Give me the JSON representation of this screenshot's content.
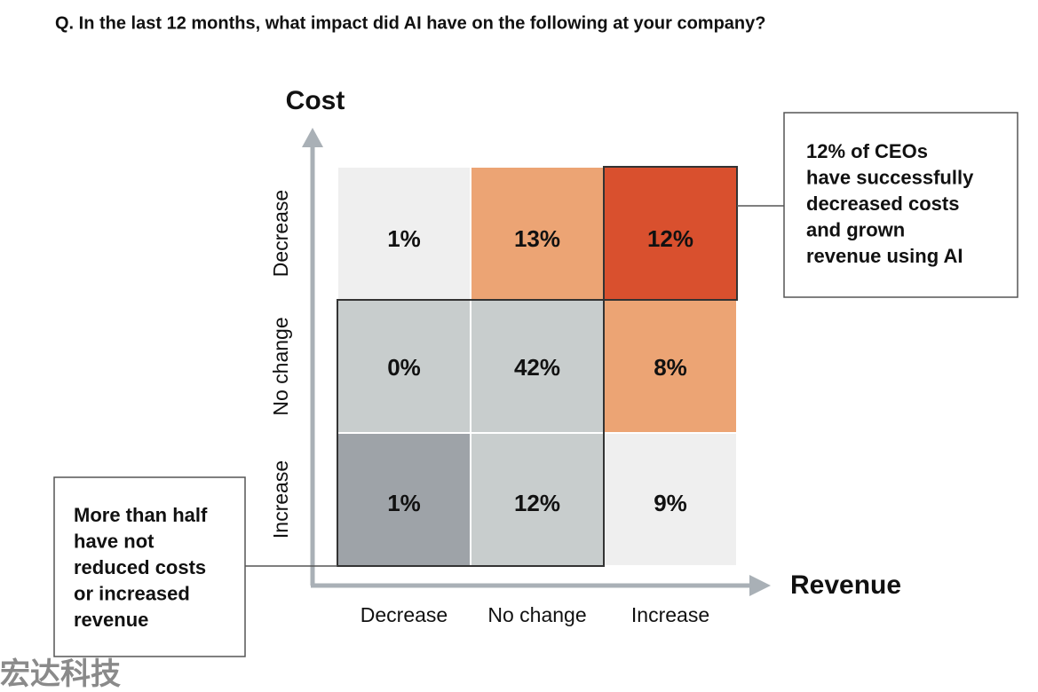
{
  "chart_data": {
    "type": "heatmap",
    "title": "Q. In the last 12 months, what impact did AI have on the following at your company?",
    "x_label": "Revenue",
    "y_label": "Cost",
    "x_categories": [
      "Decrease",
      "No change",
      "Increase"
    ],
    "y_categories": [
      "Decrease",
      "No change",
      "Increase"
    ],
    "values": [
      [
        1,
        13,
        12
      ],
      [
        0,
        42,
        8
      ],
      [
        1,
        12,
        9
      ]
    ],
    "value_labels": [
      [
        "1%",
        "13%",
        "12%"
      ],
      [
        "0%",
        "42%",
        "8%"
      ],
      [
        "1%",
        "12%",
        "9%"
      ]
    ],
    "colors": [
      [
        "#efefef",
        "#eca474",
        "#d9502e"
      ],
      [
        "#c8cdcd",
        "#c8cdcd",
        "#eca474"
      ],
      [
        "#9ea3a8",
        "#c8cdcd",
        "#efefef"
      ]
    ],
    "annotations": [
      {
        "lines": [
          "12% of CEOs",
          "have successfully",
          "decreased costs",
          "and grown",
          "revenue using AI"
        ]
      },
      {
        "lines": [
          "More than half",
          "have not",
          "reduced costs",
          "or increased",
          "revenue"
        ]
      }
    ]
  },
  "watermark": "宏达科技"
}
